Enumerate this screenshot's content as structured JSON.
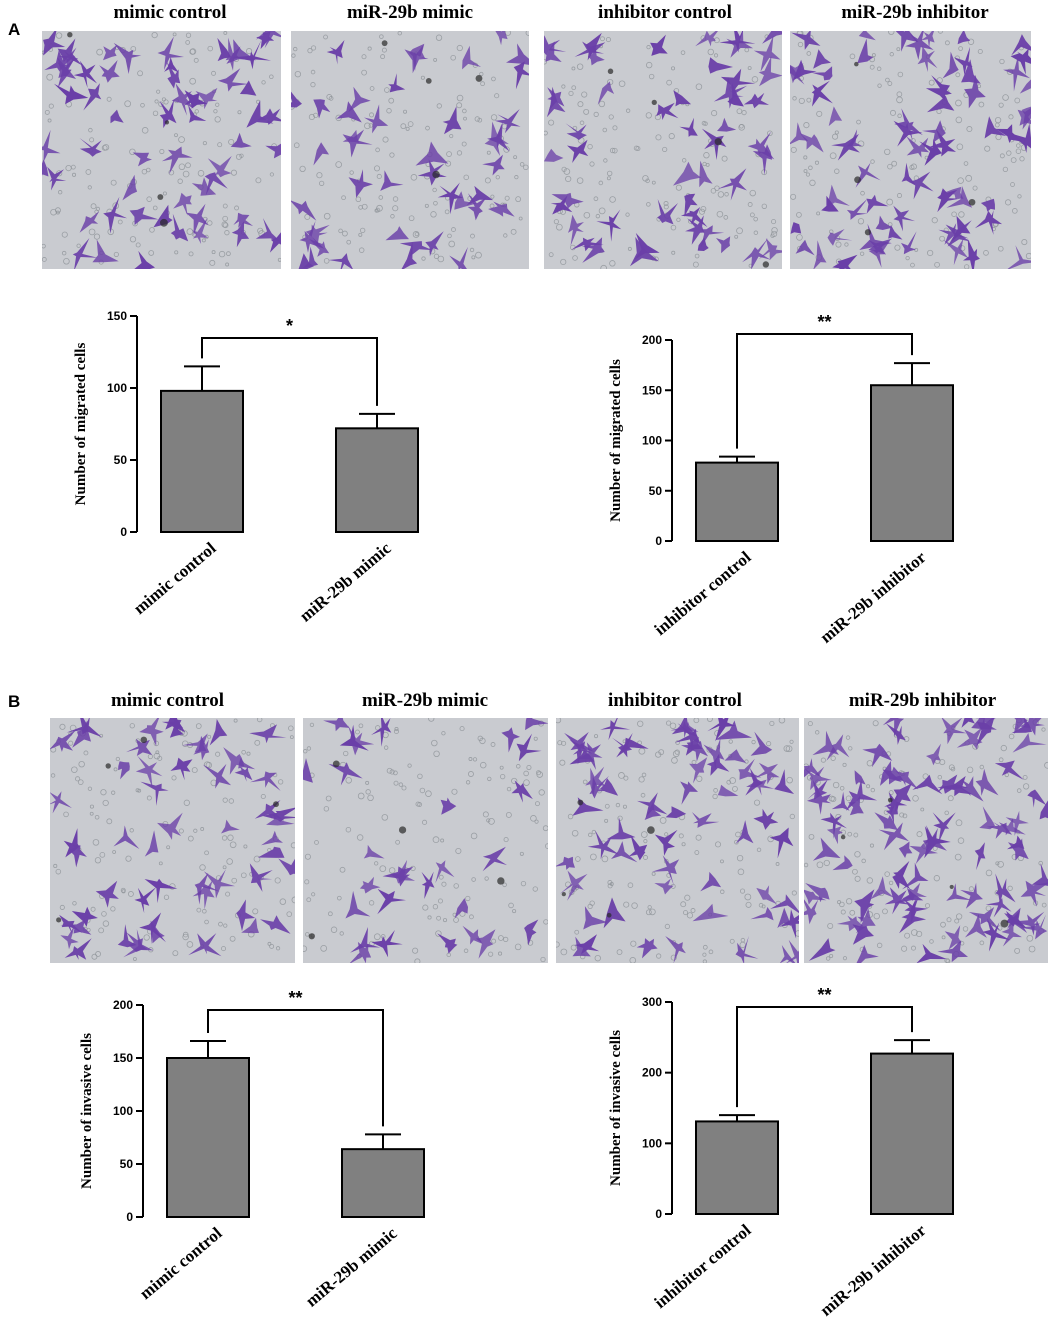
{
  "panels": [
    {
      "letter": "A",
      "image_labels": [
        "mimic control",
        "miR-29b mimic",
        "inhibitor control",
        "miR-29b inhibitor"
      ]
    },
    {
      "letter": "B",
      "image_labels": [
        "mimic control",
        "miR-29b mimic",
        "inhibitor control",
        "miR-29b inhibitor"
      ]
    }
  ],
  "colors": {
    "bar": "#808080",
    "image_bg": "#c9cbd0",
    "cell": "#6a3fa8"
  },
  "chart_data": [
    {
      "type": "bar",
      "categories": [
        "mimic control",
        "miR-29b mimic"
      ],
      "values": [
        98,
        72
      ],
      "errors": [
        17,
        10
      ],
      "ylabel": "Number of migrated cells",
      "ylim": [
        0,
        150
      ],
      "yticks": [
        0,
        50,
        100,
        150
      ],
      "significance": "*"
    },
    {
      "type": "bar",
      "categories": [
        "inhibitor control",
        "miR-29b inhibitor"
      ],
      "values": [
        78,
        155
      ],
      "errors": [
        6,
        22
      ],
      "ylabel": "Number of migrated cells",
      "ylim": [
        0,
        200
      ],
      "yticks": [
        0,
        50,
        100,
        150,
        200
      ],
      "significance": "**"
    },
    {
      "type": "bar",
      "categories": [
        "mimic control",
        "miR-29b mimic"
      ],
      "values": [
        150,
        64
      ],
      "errors": [
        16,
        14
      ],
      "ylabel": "Number of invasive cells",
      "ylim": [
        0,
        200
      ],
      "yticks": [
        0,
        50,
        100,
        150,
        200
      ],
      "significance": "**"
    },
    {
      "type": "bar",
      "categories": [
        "inhibitor control",
        "miR-29b inhibitor"
      ],
      "values": [
        131,
        227
      ],
      "errors": [
        9,
        19
      ],
      "ylabel": "Number of invasive cells",
      "ylim": [
        0,
        300
      ],
      "yticks": [
        0,
        100,
        200,
        300
      ],
      "significance": "**"
    }
  ]
}
